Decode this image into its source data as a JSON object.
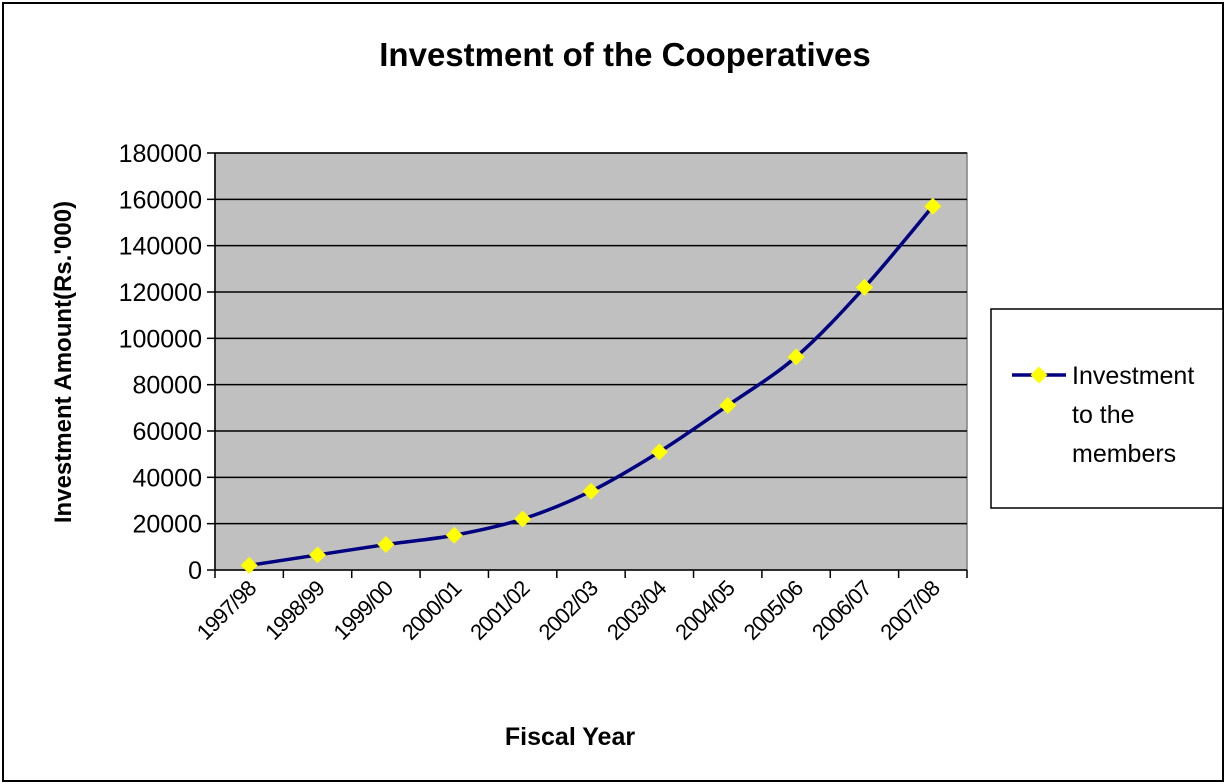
{
  "chart_data": {
    "type": "line",
    "title": "Investment of the Cooperatives",
    "xlabel": "Fiscal Year",
    "ylabel": "Investment Amount(Rs.'000)",
    "categories": [
      "1997/98",
      "1998/99",
      "1999/00",
      "2000/01",
      "2001/02",
      "2002/03",
      "2003/04",
      "2004/05",
      "2005/06",
      "2006/07",
      "2007/08"
    ],
    "series": [
      {
        "name": "Investment to the members",
        "legend_lines": [
          "Investment",
          "to the",
          "members"
        ],
        "values": [
          2000,
          6500,
          11000,
          15000,
          22000,
          34000,
          51000,
          71000,
          92000,
          122000,
          157000
        ],
        "line_color": "#000080",
        "marker_color": "#ffff00"
      }
    ],
    "ylim": [
      0,
      180000
    ],
    "yticks": [
      "0",
      "20000",
      "40000",
      "60000",
      "80000",
      "100000",
      "120000",
      "140000",
      "160000",
      "180000"
    ],
    "grid": true,
    "plot_background": "#c0c0c0",
    "legend_position": "right"
  }
}
